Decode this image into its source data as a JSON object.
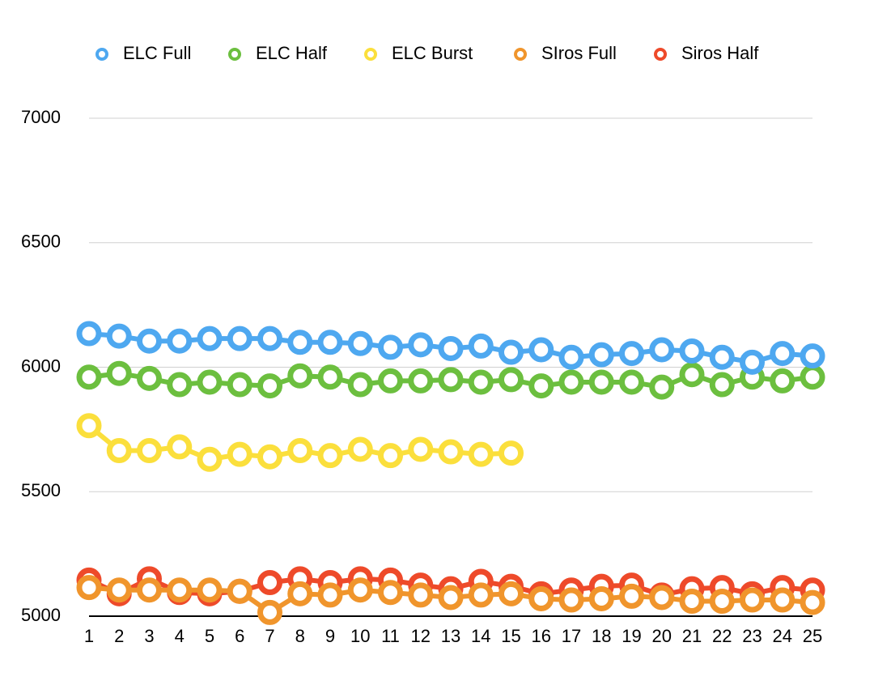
{
  "chart_data": {
    "type": "line",
    "categories": [
      1,
      2,
      3,
      4,
      5,
      6,
      7,
      8,
      9,
      10,
      11,
      12,
      13,
      14,
      15,
      16,
      17,
      18,
      19,
      20,
      21,
      22,
      23,
      24,
      25
    ],
    "series": [
      {
        "name": "ELC Full",
        "color": "#4ea8f0",
        "values": [
          6135,
          6125,
          6105,
          6105,
          6115,
          6115,
          6115,
          6100,
          6100,
          6095,
          6080,
          6090,
          6075,
          6085,
          6060,
          6070,
          6040,
          6050,
          6055,
          6070,
          6065,
          6040,
          6020,
          6055,
          6045
        ]
      },
      {
        "name": "ELC Half",
        "color": "#6cbf3f",
        "values": [
          5960,
          5975,
          5955,
          5930,
          5940,
          5930,
          5925,
          5965,
          5960,
          5930,
          5945,
          5945,
          5950,
          5940,
          5950,
          5925,
          5940,
          5940,
          5940,
          5920,
          5970,
          5930,
          5960,
          5945,
          5960
        ]
      },
      {
        "name": "ELC Burst",
        "color": "#fbdf3c",
        "values": [
          5765,
          5665,
          5665,
          5680,
          5630,
          5650,
          5640,
          5665,
          5645,
          5670,
          5645,
          5670,
          5660,
          5650,
          5655,
          null,
          null,
          null,
          null,
          null,
          null,
          null,
          null,
          null,
          null
        ]
      },
      {
        "name": "SIros Full",
        "color": "#f0952c",
        "values": [
          5115,
          5105,
          5105,
          5105,
          5105,
          5100,
          5015,
          5090,
          5085,
          5105,
          5095,
          5085,
          5075,
          5085,
          5090,
          5070,
          5065,
          5070,
          5080,
          5075,
          5060,
          5060,
          5065,
          5065,
          5055
        ]
      },
      {
        "name": "Siros Half",
        "color": "#ee4a2a",
        "values": [
          5145,
          5090,
          5150,
          5095,
          5090,
          5100,
          5135,
          5150,
          5135,
          5150,
          5145,
          5125,
          5110,
          5140,
          5120,
          5090,
          5105,
          5120,
          5125,
          5085,
          5110,
          5115,
          5090,
          5115,
          5105
        ]
      }
    ],
    "ylim": [
      5000,
      7000
    ],
    "yticks": [
      5000,
      5500,
      6000,
      6500,
      7000
    ],
    "grid": true
  }
}
